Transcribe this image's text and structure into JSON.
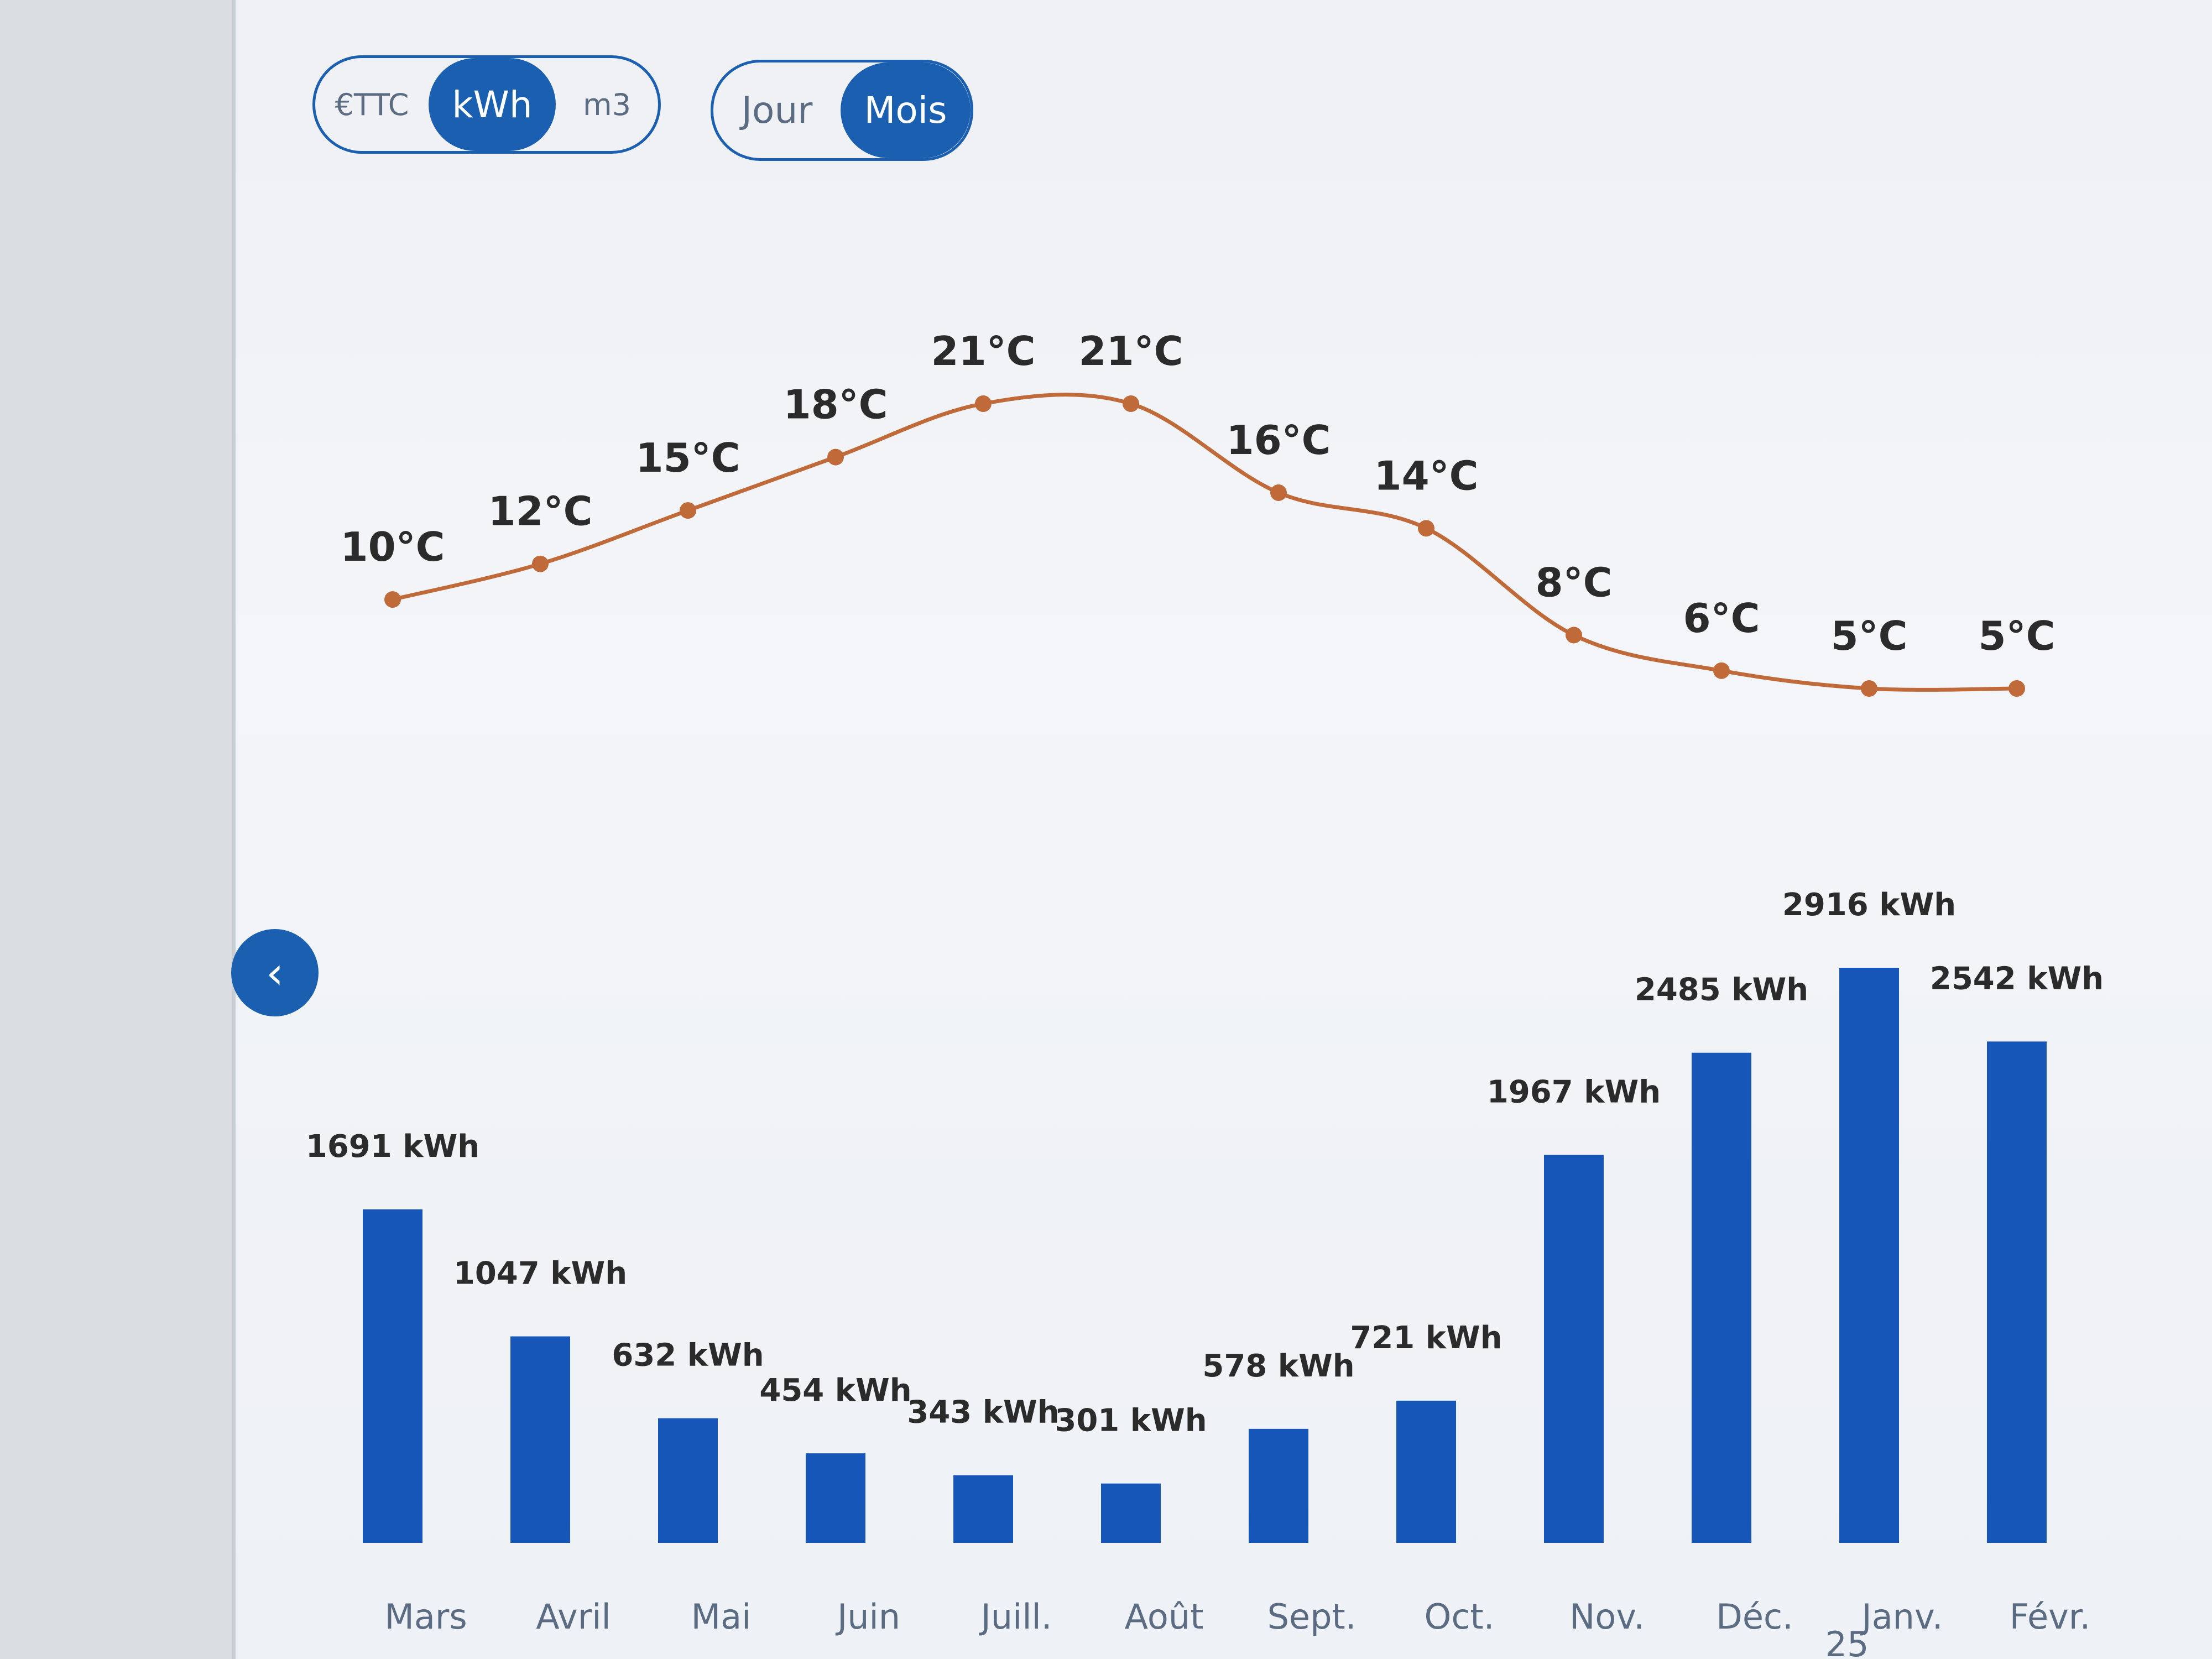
{
  "unit_toggle": {
    "options": [
      {
        "label": "€TTC",
        "active": false
      },
      {
        "label": "kWh",
        "active": true
      },
      {
        "label": "m3",
        "active": false
      }
    ]
  },
  "period_toggle": {
    "options": [
      {
        "label": "Jour",
        "active": false
      },
      {
        "label": "Mois",
        "active": true
      }
    ]
  },
  "nav": {
    "prev_icon": "chevron-left-icon",
    "prev_glyph": "‹"
  },
  "colors": {
    "accent": "#1a5fb0",
    "bar": "#1556b8",
    "temperature_line": "#c06a3a"
  },
  "chart_data": {
    "type": "bar",
    "categories": [
      "Mars",
      "Avril",
      "Mai",
      "Juin",
      "Juill.",
      "Août",
      "Sept.",
      "Oct.",
      "Nov.",
      "Déc.",
      "Janv.",
      "Févr."
    ],
    "category_sublabels": [
      "",
      "",
      "",
      "",
      "",
      "",
      "",
      "",
      "",
      "",
      "25",
      ""
    ],
    "series": [
      {
        "values": [
          1691,
          1047,
          632,
          454,
          343,
          301,
          578,
          721,
          1967,
          2485,
          2916,
          2542
        ],
        "labels": [
          "1691 kWh",
          "1047 kWh",
          "632 kWh",
          "454 kWh",
          "343 kWh",
          "301 kWh",
          "578 kWh",
          "721 kWh",
          "1967 kWh",
          "2485 kWh",
          "2916 kWh",
          "2542 kWh"
        ]
      }
    ],
    "temperature": {
      "type": "line",
      "values": [
        10,
        12,
        15,
        18,
        21,
        21,
        16,
        14,
        8,
        6,
        5,
        5
      ],
      "labels": [
        "10°C",
        "12°C",
        "15°C",
        "18°C",
        "21°C",
        "21°C",
        "16°C",
        "14°C",
        "8°C",
        "6°C",
        "5°C",
        "5°C"
      ]
    },
    "title": "",
    "xlabel": "",
    "ylabel": "",
    "grid": false,
    "legend": "none"
  }
}
